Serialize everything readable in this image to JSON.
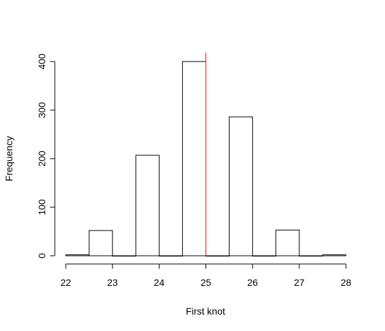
{
  "chart_data": {
    "type": "bar",
    "subtype": "histogram",
    "title": "",
    "xlabel": "First knot",
    "ylabel": "Frequency",
    "bins": [
      {
        "x0": 22.0,
        "x1": 22.5,
        "count": 2
      },
      {
        "x0": 22.5,
        "x1": 23.0,
        "count": 52
      },
      {
        "x0": 23.0,
        "x1": 23.5,
        "count": 0
      },
      {
        "x0": 23.5,
        "x1": 24.0,
        "count": 207
      },
      {
        "x0": 24.0,
        "x1": 24.5,
        "count": 0
      },
      {
        "x0": 24.5,
        "x1": 25.0,
        "count": 400
      },
      {
        "x0": 25.0,
        "x1": 25.5,
        "count": 0
      },
      {
        "x0": 25.5,
        "x1": 26.0,
        "count": 286
      },
      {
        "x0": 26.0,
        "x1": 26.5,
        "count": 0
      },
      {
        "x0": 26.5,
        "x1": 27.0,
        "count": 53
      },
      {
        "x0": 27.0,
        "x1": 27.5,
        "count": 0
      },
      {
        "x0": 27.5,
        "x1": 28.0,
        "count": 2
      }
    ],
    "xlim": [
      22,
      28
    ],
    "ylim": [
      0,
      418
    ],
    "x_ticks": [
      22,
      23,
      24,
      25,
      26,
      27,
      28
    ],
    "y_ticks": [
      0,
      100,
      200,
      300,
      400
    ],
    "reference_line": {
      "x": 25,
      "color": "#ff0000"
    },
    "grid": false,
    "bar_fill": "#ffffff",
    "bar_stroke": "#000000"
  }
}
